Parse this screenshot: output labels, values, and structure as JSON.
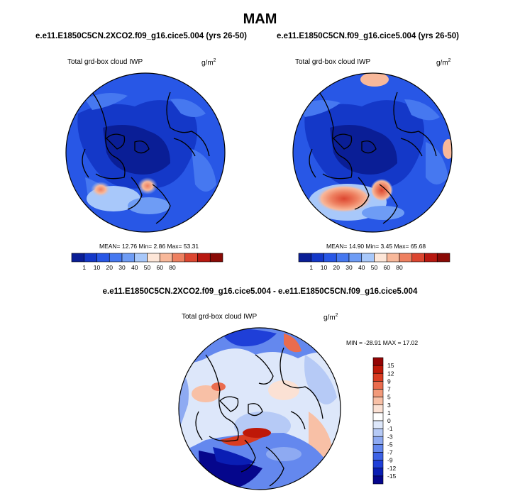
{
  "page": {
    "title": "MAM",
    "diff_title": "e.e11.E1850C5CN.2XCO2.f09_g16.cice5.004 - e.e11.E1850C5CN.f09_g16.cice5.004"
  },
  "colors": {
    "abs_scale": [
      "#0a1e96",
      "#1438c8",
      "#2857e6",
      "#4678f0",
      "#6e9cf5",
      "#a8c8fa",
      "#fde6d8",
      "#f8b89a",
      "#ee8060",
      "#dc4630",
      "#b81810",
      "#8a0a06"
    ],
    "diff_scale": [
      "#05068c",
      "#0a1eb4",
      "#1f3fd8",
      "#3d62e6",
      "#6488ee",
      "#8eaaf2",
      "#b6caf6",
      "#dde7fa",
      "#ffffff",
      "#fbe1d4",
      "#f8c0a6",
      "#f29a7a",
      "#ea6c4e",
      "#da3c22",
      "#be1808",
      "#940404"
    ]
  },
  "chart_data": [
    {
      "type": "heatmap",
      "projection": "polar-stereographic",
      "name": "2xco2",
      "title": "e.e11.E1850C5CN.2XCO2.f09_g16.cice5.004 (yrs 26-50)",
      "variable": "Total grd-box cloud IWP",
      "units": "g/m",
      "units_sup": "2",
      "stats": "MEAN=  12.76  Min=   2.86  Max=  53.31",
      "mean": 12.76,
      "min": 2.86,
      "max": 53.31,
      "levels": [
        "1",
        "10",
        "20",
        "30",
        "40",
        "50",
        "60",
        "80"
      ]
    },
    {
      "type": "heatmap",
      "projection": "polar-stereographic",
      "name": "control",
      "title": "e.e11.E1850C5CN.f09_g16.cice5.004 (yrs 26-50)",
      "variable": "Total grd-box cloud IWP",
      "units": "g/m",
      "units_sup": "2",
      "stats": "MEAN=  14.90  Min=   3.45  Max=  65.68",
      "mean": 14.9,
      "min": 3.45,
      "max": 65.68,
      "levels": [
        "1",
        "10",
        "20",
        "30",
        "40",
        "50",
        "60",
        "80"
      ]
    },
    {
      "type": "heatmap",
      "projection": "polar-stereographic",
      "name": "difference",
      "title": "e.e11.E1850C5CN.2XCO2.f09_g16.cice5.004 - e.e11.E1850C5CN.f09_g16.cice5.004",
      "variable": "Total grd-box cloud IWP",
      "units": "g/m",
      "units_sup": "2",
      "stats": "MIN = -28.91  MAX =  17.02",
      "min": -28.91,
      "max": 17.02,
      "levels": [
        "15",
        "12",
        "9",
        "7",
        "5",
        "3",
        "1",
        "0",
        "-1",
        "-3",
        "-5",
        "-7",
        "-9",
        "-12",
        "-15"
      ]
    }
  ]
}
